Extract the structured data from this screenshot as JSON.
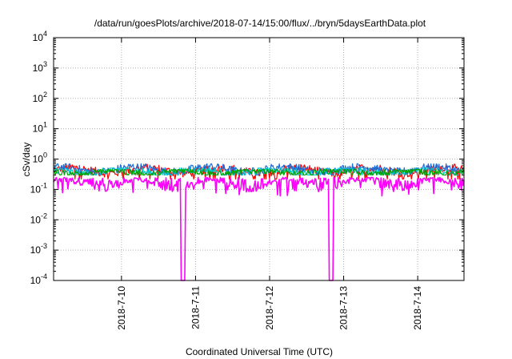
{
  "chart_data": {
    "type": "line",
    "title": "/data/run/goesPlots/archive/2018-07-14/15:00/flux/../bryn/5daysEarthData.plot",
    "xlabel": "Coordinated Universal Time (UTC)",
    "ylabel": "cSv/day",
    "yscale": "log",
    "ylim": [
      0.0001,
      10000
    ],
    "y_ticks": [
      {
        "base": "10",
        "exp": "-4",
        "value": 0.0001
      },
      {
        "base": "10",
        "exp": "-3",
        "value": 0.001
      },
      {
        "base": "10",
        "exp": "-2",
        "value": 0.01
      },
      {
        "base": "10",
        "exp": "-1",
        "value": 0.1
      },
      {
        "base": "10",
        "exp": "0",
        "value": 1
      },
      {
        "base": "10",
        "exp": "1",
        "value": 10
      },
      {
        "base": "10",
        "exp": "2",
        "value": 100
      },
      {
        "base": "10",
        "exp": "3",
        "value": 1000
      },
      {
        "base": "10",
        "exp": "4",
        "value": 10000
      }
    ],
    "xlim": [
      "2018-07-09T02:00",
      "2018-07-14T15:00"
    ],
    "x_ticks": [
      "2018-7-10",
      "2018-7-11",
      "2018-7-12",
      "2018-7-13",
      "2018-7-14"
    ],
    "grid": true,
    "legend": "none",
    "series": [
      {
        "color": "#ff0000",
        "approx_range": [
          0.2,
          0.9
        ]
      },
      {
        "color": "#1f6fd6",
        "approx_range": [
          0.3,
          0.7
        ]
      },
      {
        "color": "#00c8c8",
        "approx_range": [
          0.3,
          0.5
        ]
      },
      {
        "color": "#00a000",
        "approx_range": [
          0.3,
          0.45
        ]
      },
      {
        "color": "#ff00ff",
        "approx_range": [
          0.0001,
          0.3
        ],
        "dropouts": [
          "2018-07-10T20:00",
          "2018-07-12T20:00"
        ]
      }
    ]
  }
}
